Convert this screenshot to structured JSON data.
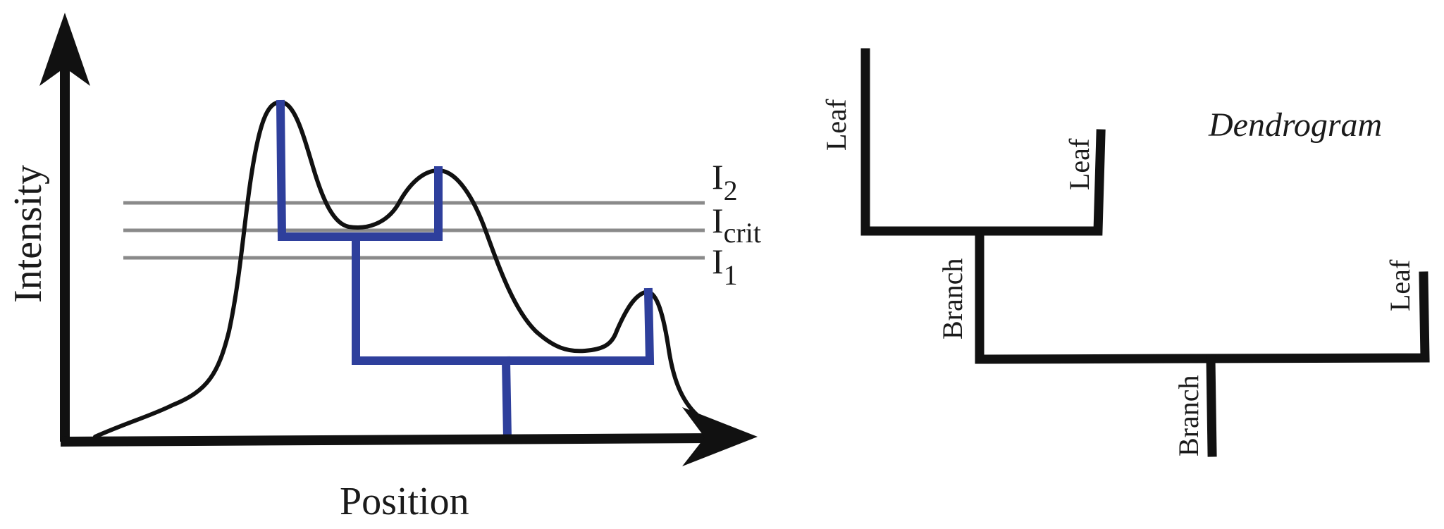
{
  "left_panel": {
    "y_axis_label": "Intensity",
    "x_axis_label": "Position",
    "levels": [
      {
        "base": "I",
        "sub": "2"
      },
      {
        "base": "I",
        "sub": "crit"
      },
      {
        "base": "I",
        "sub": "1"
      }
    ]
  },
  "right_panel": {
    "title": "Dendrogram",
    "labels": {
      "leaf_1": "Leaf",
      "leaf_2": "Leaf",
      "leaf_3": "Leaf",
      "branch_1": "Branch",
      "branch_2": "Branch"
    }
  },
  "colors": {
    "axis": "#111111",
    "curve": "#111111",
    "threshold": "#8a8a8a",
    "tree": "#2e3f9c",
    "dendrogram": "#111111"
  }
}
